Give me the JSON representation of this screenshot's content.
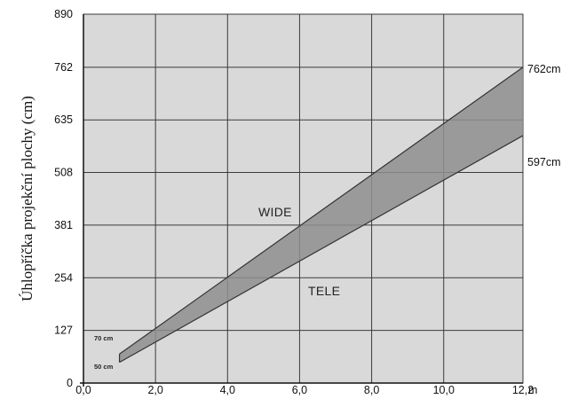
{
  "chart_data": {
    "type": "area",
    "ylabel": "Úhlopříčka projekční plochy (cm)",
    "x_ticks": [
      "0,0",
      "2,0",
      "4,0",
      "6,0",
      "8,0",
      "10,0",
      "12,2"
    ],
    "x_tick_values": [
      0,
      2,
      4,
      6,
      8,
      10,
      12.2
    ],
    "x_unit": "m",
    "y_ticks": [
      "0",
      "127",
      "254",
      "381",
      "508",
      "635",
      "762",
      "890"
    ],
    "y_tick_values": [
      0,
      127,
      254,
      381,
      508,
      635,
      762,
      890
    ],
    "xlim": [
      0,
      12.2
    ],
    "ylim": [
      0,
      890
    ],
    "grid": true,
    "series": [
      {
        "name": "WIDE",
        "x": [
          1.0,
          12.2
        ],
        "y": [
          70,
          762
        ]
      },
      {
        "name": "TELE",
        "x": [
          1.0,
          12.2
        ],
        "y": [
          50,
          597
        ]
      }
    ],
    "end_labels": [
      "762cm",
      "597cm"
    ],
    "start_labels": [
      "70 cm",
      "50 cm"
    ],
    "colors": {
      "band": "#8e8e8e",
      "plot_bg": "#d9d9d9",
      "grid": "#3a3a3a",
      "line": "#333333"
    }
  }
}
